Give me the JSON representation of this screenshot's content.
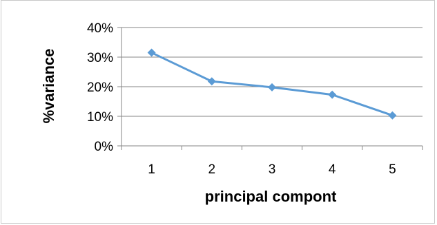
{
  "chart_data": {
    "type": "line",
    "xlabel": "principal compont",
    "ylabel": "%variance",
    "categories": [
      "1",
      "2",
      "3",
      "4",
      "5"
    ],
    "series": [
      {
        "values": [
          31.5,
          21.8,
          19.8,
          17.3,
          10.3
        ],
        "color": "#5b9bd5"
      }
    ],
    "ylim": [
      0,
      40
    ],
    "yticks": [
      "0%",
      "10%",
      "20%",
      "30%",
      "40%"
    ],
    "ytick_values": [
      0,
      10,
      20,
      30,
      40
    ],
    "grid": true,
    "legend": "none",
    "marker": "diamond"
  }
}
